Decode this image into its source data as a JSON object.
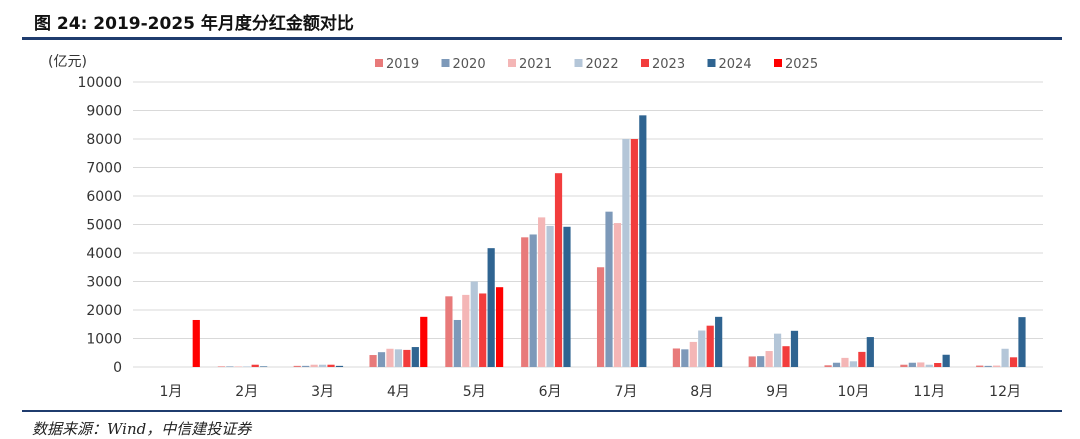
{
  "figure": {
    "title": "图 24: 2019-2025 年月度分红金额对比",
    "source": "数据来源：Wind，中信建投证券"
  },
  "chart_data": {
    "type": "bar",
    "title": "",
    "ylabel": "(亿元)",
    "xlabel": "",
    "ylim": [
      0,
      10000
    ],
    "yticks": [
      0,
      1000,
      2000,
      3000,
      4000,
      5000,
      6000,
      7000,
      8000,
      9000,
      10000
    ],
    "grid": true,
    "legend_position": "top-center",
    "categories": [
      "1月",
      "2月",
      "3月",
      "4月",
      "5月",
      "6月",
      "7月",
      "8月",
      "9月",
      "10月",
      "11月",
      "12月"
    ],
    "series": [
      {
        "name": "2019",
        "color": "#e87a7a",
        "values": [
          0,
          20,
          40,
          420,
          2480,
          4550,
          3500,
          650,
          370,
          60,
          80,
          50
        ]
      },
      {
        "name": "2020",
        "color": "#7d99b9",
        "values": [
          0,
          20,
          40,
          520,
          1650,
          4650,
          5450,
          620,
          380,
          150,
          150,
          40
        ]
      },
      {
        "name": "2021",
        "color": "#f4b6b6",
        "values": [
          0,
          20,
          80,
          640,
          2530,
          5250,
          5050,
          880,
          560,
          320,
          160,
          50
        ]
      },
      {
        "name": "2022",
        "color": "#b4c6d8",
        "values": [
          0,
          20,
          80,
          620,
          3000,
          4950,
          8000,
          1280,
          1170,
          200,
          80,
          640
        ]
      },
      {
        "name": "2023",
        "color": "#f23d3d",
        "values": [
          0,
          80,
          80,
          600,
          2580,
          6800,
          8000,
          1450,
          730,
          530,
          140,
          340
        ]
      },
      {
        "name": "2024",
        "color": "#2f6491",
        "values": [
          0,
          20,
          40,
          700,
          4170,
          4920,
          8830,
          1760,
          1270,
          1050,
          430,
          1750
        ]
      },
      {
        "name": "2025",
        "color": "#ff0000",
        "values": [
          1650,
          null,
          null,
          1760,
          2800,
          null,
          null,
          null,
          null,
          null,
          null,
          null
        ]
      }
    ]
  }
}
